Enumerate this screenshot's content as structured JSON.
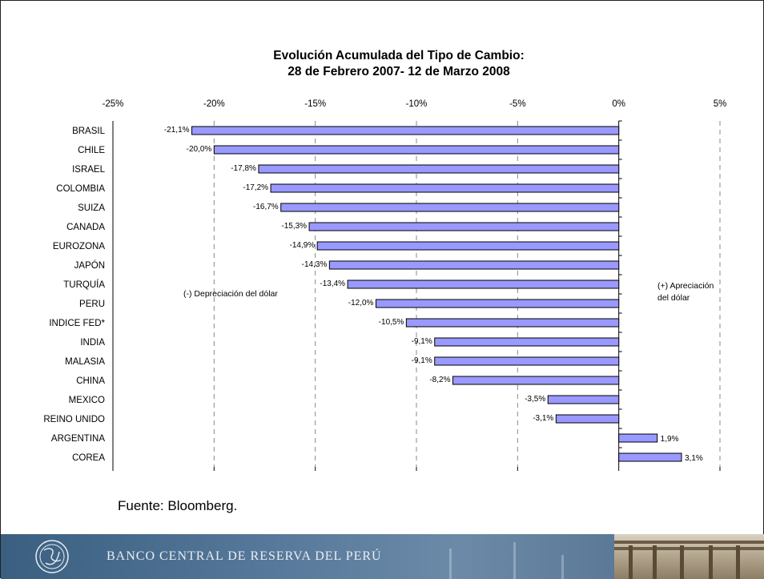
{
  "chart_data": {
    "type": "bar",
    "orientation": "horizontal",
    "title": [
      "Evolución Acumulada del Tipo de Cambio:",
      "28 de Febrero 2007- 12 de Marzo 2008"
    ],
    "categories": [
      "BRASIL",
      "CHILE",
      "ISRAEL",
      "COLOMBIA",
      "SUIZA",
      "CANADA",
      "EUROZONA",
      "JAPÓN",
      "TURQUÍA",
      "PERU",
      "INDICE FED*",
      "INDIA",
      "MALASIA",
      "CHINA",
      "MEXICO",
      "REINO UNIDO",
      "ARGENTINA",
      "COREA"
    ],
    "values": [
      -21.1,
      -20.0,
      -17.8,
      -17.2,
      -16.7,
      -15.3,
      -14.9,
      -14.3,
      -13.4,
      -12.0,
      -10.5,
      -9.1,
      -9.1,
      -8.2,
      -3.5,
      -3.1,
      1.9,
      3.1
    ],
    "value_labels": [
      "-21,1%",
      "-20,0%",
      "-17,8%",
      "-17,2%",
      "-16,7%",
      "-15,3%",
      "-14,9%",
      "-14,3%",
      "-13,4%",
      "-12,0%",
      "-10,5%",
      "-9,1%",
      "-9,1%",
      "-8,2%",
      "-3,5%",
      "-3,1%",
      "1,9%",
      "3,1%"
    ],
    "xlim": [
      -25,
      5
    ],
    "x_ticks": [
      -25,
      -20,
      -15,
      -10,
      -5,
      0,
      5
    ],
    "x_tick_labels": [
      "-25%",
      "-20%",
      "-15%",
      "-10%",
      "-5%",
      "0%",
      "5%"
    ],
    "x_axis_position": "top",
    "gridlines": "vertical dashed",
    "bar_color": "#9999ff",
    "bar_edge_color": "#000000",
    "annotations": {
      "left_note": "(-) Depreciación del dólar",
      "right_note": [
        "(+) Apreciación",
        "del dólar"
      ]
    }
  },
  "source": "Fuente: Bloomberg.",
  "footer": {
    "institution": "BANCO CENTRAL DE RESERVA DEL PERÚ",
    "logo_icon": "bcrp-monogram-icon",
    "colors": {
      "banner": "#56789a",
      "text": "#e9eef4"
    }
  }
}
